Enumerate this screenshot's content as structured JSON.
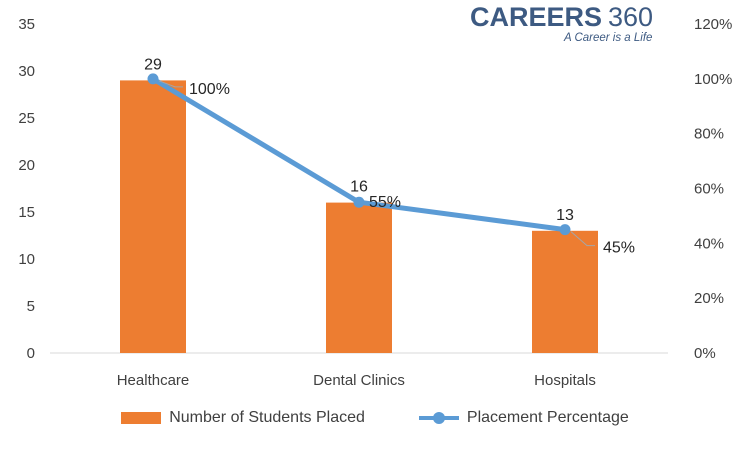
{
  "brand": {
    "name": "CAREERS",
    "number": "360",
    "tagline": "A Career is a Life"
  },
  "chart_data": {
    "type": "bar",
    "categories": [
      "Healthcare",
      "Dental Clinics",
      "Hospitals"
    ],
    "y_left": {
      "min": 0,
      "max": 35,
      "step": 5,
      "ticks": [
        "0",
        "5",
        "10",
        "15",
        "20",
        "25",
        "30",
        "35"
      ]
    },
    "y_right": {
      "min": 0,
      "max": 120,
      "step": 20,
      "ticks": [
        "0%",
        "20%",
        "40%",
        "60%",
        "80%",
        "100%",
        "120%"
      ]
    },
    "series": [
      {
        "name": "Number of Students Placed",
        "type": "bar",
        "axis": "left",
        "values": [
          29,
          16,
          13
        ],
        "labels": [
          "29",
          "16",
          "13"
        ],
        "color": "#ed7d31"
      },
      {
        "name": "Placement Percentage",
        "type": "line",
        "axis": "right",
        "values": [
          100,
          55,
          45
        ],
        "labels": [
          "100%",
          "55%",
          "45%"
        ],
        "color": "#5b9bd5"
      }
    ],
    "grid": false,
    "legend_position": "bottom"
  }
}
